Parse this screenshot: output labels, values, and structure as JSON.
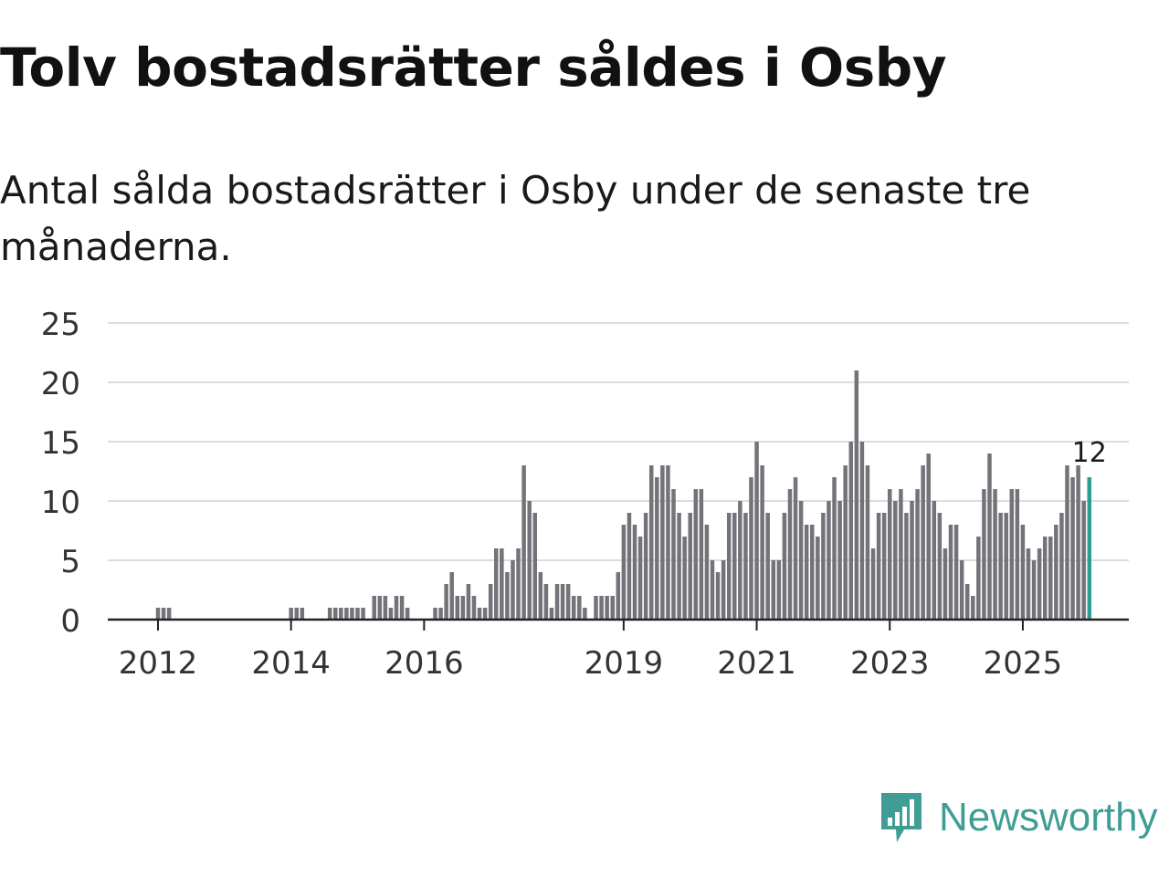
{
  "header": {
    "title": "Tolv bostadsrätter såldes i Osby",
    "subtitle": "Antal sålda bostadsrätter i Osby under de senaste tre månaderna."
  },
  "brand": {
    "name": "Newsworthy",
    "icon": "newsworthy-logo-icon",
    "color": "#3f9d95"
  },
  "colors": {
    "bar": "#74737a",
    "highlight": "#2a9d95",
    "grid": "#dddddd",
    "axis": "#222222",
    "text": "#333333"
  },
  "chart_data": {
    "type": "bar",
    "title": "Tolv bostadsrätter såldes i Osby",
    "xlabel": "",
    "ylabel": "",
    "ylim": [
      0,
      25
    ],
    "yticks": [
      0,
      5,
      10,
      15,
      20,
      25
    ],
    "xticks": [
      "2012",
      "2014",
      "2016",
      "2019",
      "2021",
      "2023",
      "2025"
    ],
    "grid": true,
    "start": "2011-01",
    "frequency": "monthly",
    "highlight_label": "12",
    "values": [
      0,
      0,
      0,
      0,
      0,
      0,
      0,
      0,
      0,
      0,
      0,
      0,
      1,
      1,
      1,
      0,
      0,
      0,
      0,
      0,
      0,
      0,
      0,
      0,
      0,
      0,
      0,
      0,
      0,
      0,
      0,
      0,
      0,
      0,
      0,
      0,
      1,
      1,
      1,
      0,
      0,
      0,
      0,
      1,
      1,
      1,
      1,
      1,
      1,
      1,
      0,
      2,
      2,
      2,
      1,
      2,
      2,
      1,
      0,
      0,
      0,
      0,
      1,
      1,
      3,
      4,
      2,
      2,
      3,
      2,
      1,
      1,
      3,
      6,
      6,
      4,
      5,
      6,
      13,
      10,
      9,
      4,
      3,
      1,
      3,
      3,
      3,
      2,
      2,
      1,
      0,
      2,
      2,
      2,
      2,
      4,
      8,
      9,
      8,
      7,
      9,
      13,
      12,
      13,
      13,
      11,
      9,
      7,
      9,
      11,
      11,
      8,
      5,
      4,
      5,
      9,
      9,
      10,
      9,
      12,
      15,
      13,
      9,
      5,
      5,
      9,
      11,
      12,
      10,
      8,
      8,
      7,
      9,
      10,
      12,
      10,
      13,
      15,
      21,
      15,
      13,
      6,
      9,
      9,
      11,
      10,
      11,
      9,
      10,
      11,
      13,
      14,
      10,
      9,
      6,
      8,
      8,
      5,
      3,
      2,
      7,
      11,
      14,
      11,
      9,
      9,
      11,
      11,
      8,
      6,
      5,
      6,
      7,
      7,
      8,
      9,
      13,
      12,
      13,
      10,
      12
    ]
  }
}
